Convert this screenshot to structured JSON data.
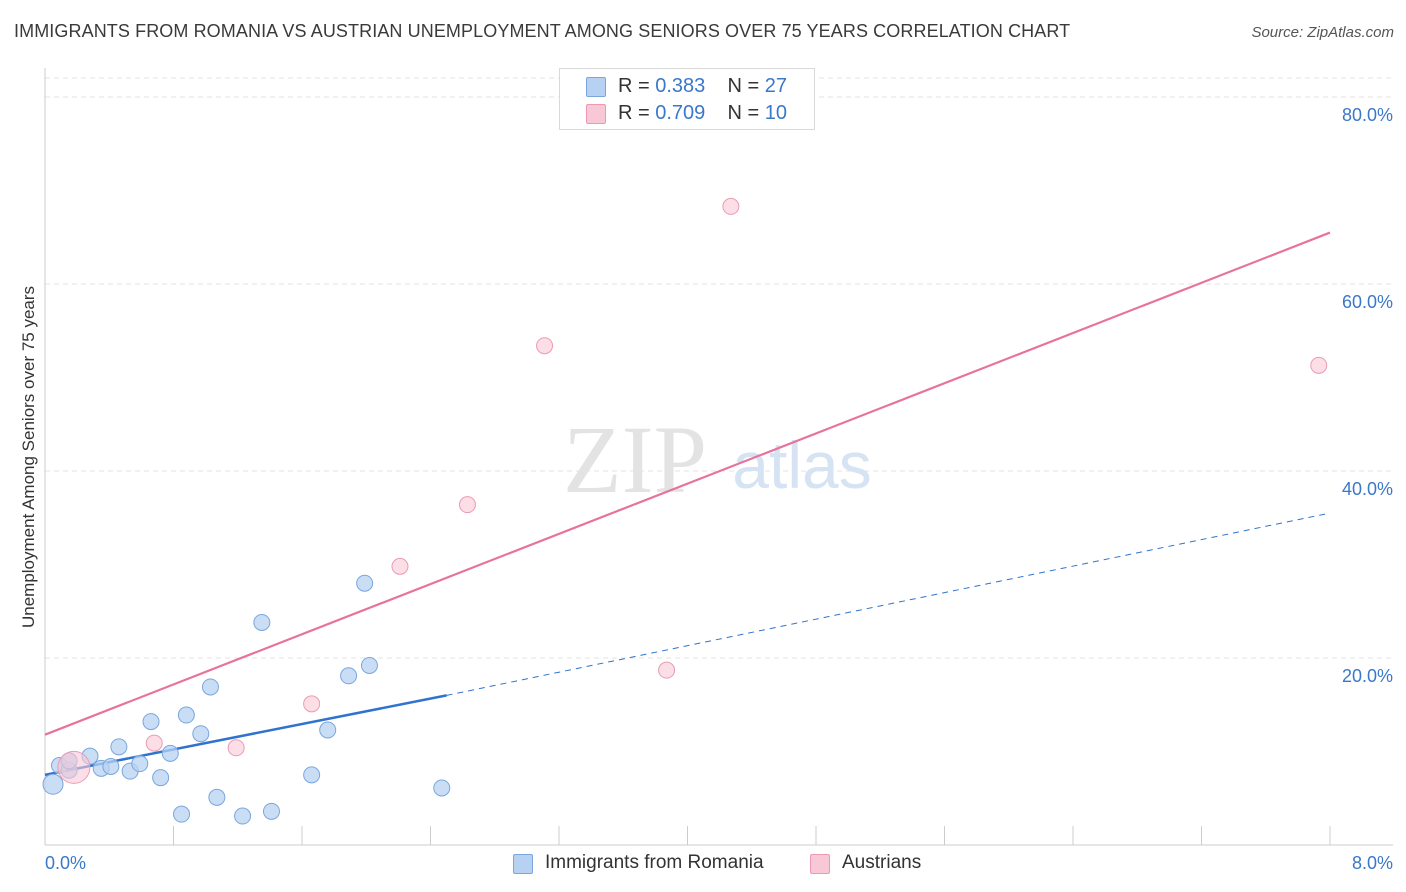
{
  "header": {
    "title": "IMMIGRANTS FROM ROMANIA VS AUSTRIAN UNEMPLOYMENT AMONG SENIORS OVER 75 YEARS CORRELATION CHART",
    "source": "Source: ZipAtlas.com"
  },
  "watermark": {
    "zip": "ZIP",
    "atlas": "atlas"
  },
  "legend_top": [
    {
      "r_label": "R =",
      "r_value": "0.383",
      "n_label": "N =",
      "n_value": "27"
    },
    {
      "r_label": "R =",
      "r_value": "0.709",
      "n_label": "N =",
      "n_value": "10"
    }
  ],
  "colors": {
    "blue_fill": "#b7d1f2",
    "blue_stroke": "#7aa6de",
    "blue_line": "#2f73cf",
    "pink_fill": "#f8c8d6",
    "pink_stroke": "#ec9ab4",
    "pink_line": "#e8739a",
    "grid": "#e3e3e3",
    "axis_text": "#3a78c9"
  },
  "chart_data": {
    "type": "scatter",
    "title": "IMMIGRANTS FROM ROMANIA VS AUSTRIAN UNEMPLOYMENT AMONG SENIORS OVER 75 YEARS CORRELATION CHART",
    "xlabel": "",
    "ylabel": "Unemployment Among Seniors over 75 years",
    "xlim": [
      0,
      8
    ],
    "ylim": [
      0,
      80
    ],
    "x_tick_labels": [
      "0.0%",
      "8.0%"
    ],
    "y_ticks": [
      20,
      40,
      60,
      80
    ],
    "y_tick_labels": [
      "20.0%",
      "40.0%",
      "60.0%",
      "80.0%"
    ],
    "series": [
      {
        "name": "Immigrants from Romania",
        "color": "blue",
        "r": "0.383",
        "n": "27",
        "points": [
          {
            "x": 0.05,
            "y": 6.5,
            "size": 10
          },
          {
            "x": 0.09,
            "y": 8.5,
            "size": 8
          },
          {
            "x": 0.15,
            "y": 8.0,
            "size": 8
          },
          {
            "x": 0.28,
            "y": 9.5,
            "size": 8
          },
          {
            "x": 0.35,
            "y": 8.2,
            "size": 8
          },
          {
            "x": 0.41,
            "y": 8.4,
            "size": 8
          },
          {
            "x": 0.46,
            "y": 10.5,
            "size": 8
          },
          {
            "x": 0.53,
            "y": 7.9,
            "size": 8
          },
          {
            "x": 0.59,
            "y": 8.7,
            "size": 8
          },
          {
            "x": 0.66,
            "y": 13.2,
            "size": 8
          },
          {
            "x": 0.72,
            "y": 7.2,
            "size": 8
          },
          {
            "x": 0.78,
            "y": 9.8,
            "size": 8
          },
          {
            "x": 0.85,
            "y": 3.3,
            "size": 8
          },
          {
            "x": 0.88,
            "y": 13.9,
            "size": 8
          },
          {
            "x": 0.97,
            "y": 11.9,
            "size": 8
          },
          {
            "x": 1.03,
            "y": 16.9,
            "size": 8
          },
          {
            "x": 1.07,
            "y": 5.1,
            "size": 8
          },
          {
            "x": 1.23,
            "y": 3.1,
            "size": 8
          },
          {
            "x": 1.35,
            "y": 23.8,
            "size": 8
          },
          {
            "x": 1.41,
            "y": 3.6,
            "size": 8
          },
          {
            "x": 1.66,
            "y": 7.5,
            "size": 8
          },
          {
            "x": 1.76,
            "y": 12.3,
            "size": 8
          },
          {
            "x": 1.89,
            "y": 18.1,
            "size": 8
          },
          {
            "x": 1.99,
            "y": 28.0,
            "size": 8
          },
          {
            "x": 2.02,
            "y": 19.2,
            "size": 8
          },
          {
            "x": 2.47,
            "y": 6.1,
            "size": 8
          },
          {
            "x": 0.15,
            "y": 9.0,
            "size": 8
          }
        ],
        "trend": {
          "x0": 0.0,
          "y0": 7.5,
          "x1": 2.5,
          "y1": 16.0,
          "dash_to_x": 8.0,
          "dash_to_y": 35.5
        }
      },
      {
        "name": "Austrians",
        "color": "pink",
        "r": "0.709",
        "n": "10",
        "points": [
          {
            "x": 0.18,
            "y": 8.3,
            "size": 16
          },
          {
            "x": 0.68,
            "y": 10.9,
            "size": 8
          },
          {
            "x": 1.19,
            "y": 10.4,
            "size": 8
          },
          {
            "x": 1.66,
            "y": 15.1,
            "size": 8
          },
          {
            "x": 2.21,
            "y": 29.8,
            "size": 8
          },
          {
            "x": 2.63,
            "y": 36.4,
            "size": 8
          },
          {
            "x": 3.11,
            "y": 53.4,
            "size": 8
          },
          {
            "x": 3.87,
            "y": 18.7,
            "size": 8
          },
          {
            "x": 4.27,
            "y": 68.3,
            "size": 8
          },
          {
            "x": 7.93,
            "y": 51.3,
            "size": 8
          }
        ],
        "trend": {
          "x0": 0.0,
          "y0": 11.8,
          "x1": 8.0,
          "y1": 65.5
        }
      }
    ],
    "legend": [
      "Immigrants from Romania",
      "Austrians"
    ]
  }
}
